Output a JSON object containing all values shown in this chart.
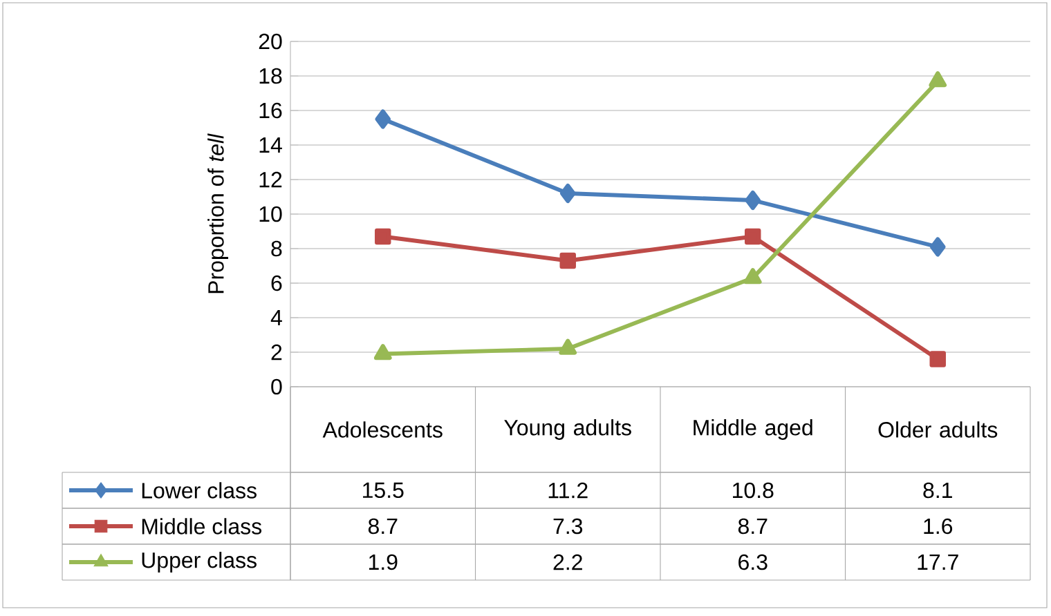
{
  "chart_data": {
    "type": "line",
    "ylabel": "Proportion of *tell*",
    "categories": [
      "Adolescents",
      "Young adults",
      "Middle aged",
      "Older adults"
    ],
    "series": [
      {
        "name": "Lower class",
        "color": "#4a7ebb",
        "marker": "diamond",
        "values": [
          15.5,
          11.2,
          10.8,
          8.1
        ]
      },
      {
        "name": "Middle class",
        "color": "#be4b48",
        "marker": "square",
        "values": [
          8.7,
          7.3,
          8.7,
          1.6
        ]
      },
      {
        "name": "Upper class",
        "color": "#98b954",
        "marker": "triangle",
        "values": [
          1.9,
          2.2,
          6.3,
          17.7
        ]
      }
    ],
    "ylim": [
      0,
      20
    ],
    "yticks": [
      0,
      2,
      4,
      6,
      8,
      10,
      12,
      14,
      16,
      18,
      20
    ],
    "grid": "y",
    "legend": "bottom",
    "data_labels": true
  }
}
